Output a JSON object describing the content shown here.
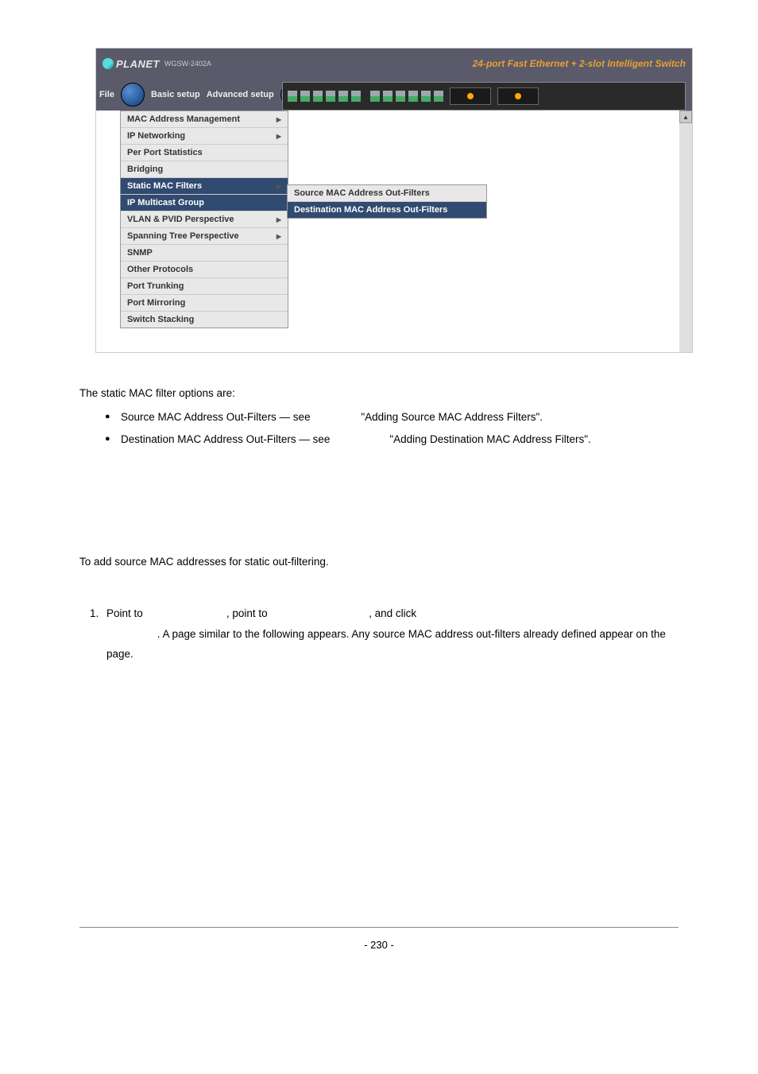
{
  "screenshot": {
    "logo_text": "PLANET",
    "model": "WGSW-2402A",
    "tagline": "24-port Fast Ethernet + 2-slot Intelligent Switch",
    "menubar": {
      "file": "File",
      "basic": "Basic setup",
      "advanced": "Advanced setup"
    },
    "menu_items": [
      {
        "label": "MAC Address Management",
        "has_arrow": true,
        "selected": false
      },
      {
        "label": "IP Networking",
        "has_arrow": true,
        "selected": false
      },
      {
        "label": "Per Port Statistics",
        "has_arrow": false,
        "selected": false
      },
      {
        "label": "Bridging",
        "has_arrow": false,
        "selected": false
      },
      {
        "label": "Static MAC Filters",
        "has_arrow": true,
        "selected": true
      },
      {
        "label": "IP Multicast Group",
        "has_arrow": false,
        "selected": true
      },
      {
        "label": "VLAN & PVID Perspective",
        "has_arrow": true,
        "selected": false
      },
      {
        "label": "Spanning Tree Perspective",
        "has_arrow": true,
        "selected": false
      },
      {
        "label": "SNMP",
        "has_arrow": false,
        "selected": false
      },
      {
        "label": "Other Protocols",
        "has_arrow": false,
        "selected": false
      },
      {
        "label": "Port Trunking",
        "has_arrow": false,
        "selected": false
      },
      {
        "label": "Port Mirroring",
        "has_arrow": false,
        "selected": false
      },
      {
        "label": "Switch Stacking",
        "has_arrow": false,
        "selected": false
      }
    ],
    "submenu_items": [
      {
        "label": "Source MAC Address Out-Filters",
        "selected": false
      },
      {
        "label": "Destination MAC Address Out-Filters",
        "selected": true
      }
    ],
    "colors": {
      "header_bg": "#5a5a6a",
      "selected_bg": "#304a70",
      "item_bg": "#e8e8e8",
      "tagline_color": "#e8a030"
    }
  },
  "body": {
    "intro": "The static MAC filter options are:",
    "bullet1_a": "Source MAC Address Out-Filters — see ",
    "bullet1_b": "\"Adding Source MAC Address Filters\".",
    "bullet2_a": "Destination MAC Address Out-Filters — see ",
    "bullet2_b": "\"Adding Destination MAC Address Filters\".",
    "para2": "To add source MAC addresses for static out-filtering.",
    "step1_a": "Point to ",
    "step1_b": ", point to ",
    "step1_c": ", and click ",
    "step1_d": ". A page similar to the following appears. Any source MAC address out-filters already defined appear on the page.",
    "page_num": "- 230 -"
  }
}
